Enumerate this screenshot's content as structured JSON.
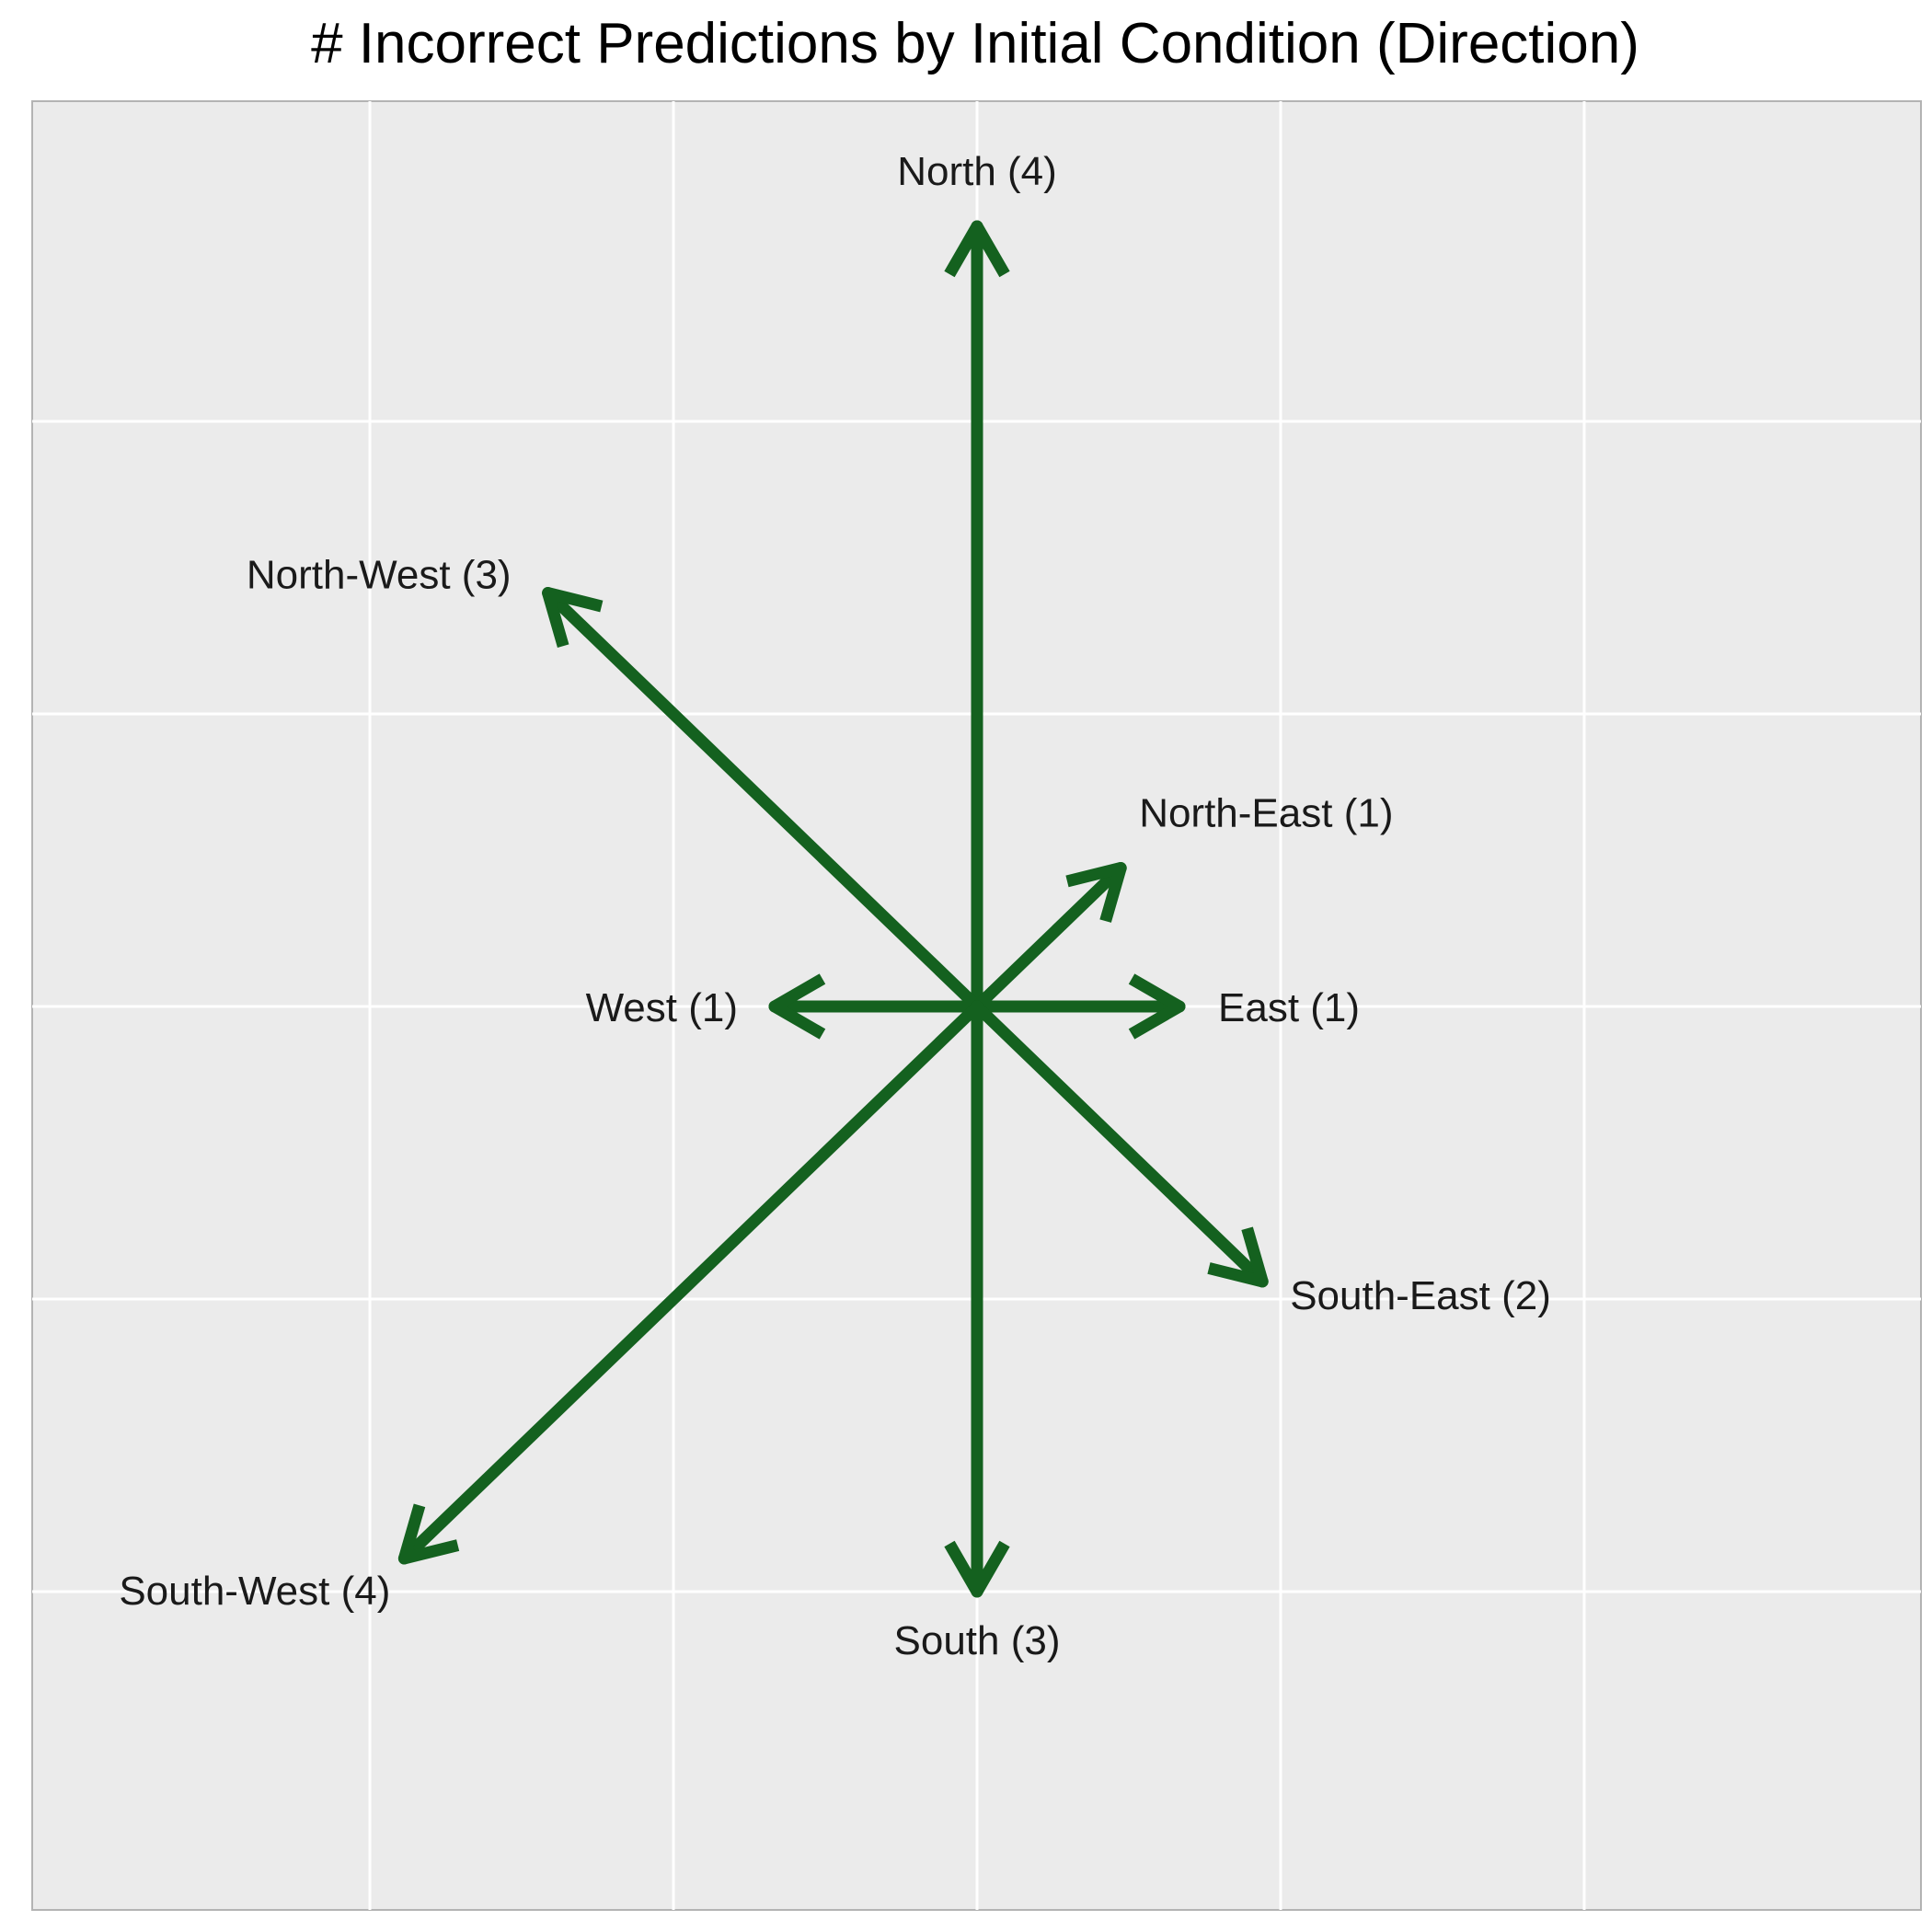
{
  "chart_data": {
    "type": "vector",
    "title": "# Incorrect Predictions by Initial Condition (Direction)",
    "xlim": [
      -4.4,
      4.4
    ],
    "ylim": [
      -4.4,
      4.4
    ],
    "grid": true,
    "arrows": [
      {
        "name": "North (4)",
        "direction": "North",
        "count": 4,
        "x": 0,
        "y": 4
      },
      {
        "name": "North-West (3)",
        "direction": "North-West",
        "count": 3,
        "x": -2.12,
        "y": 2.12
      },
      {
        "name": "North-East (1)",
        "direction": "North-East",
        "count": 1,
        "x": 0.71,
        "y": 0.71
      },
      {
        "name": "West (1)",
        "direction": "West",
        "count": 1,
        "x": -1,
        "y": 0
      },
      {
        "name": "East (1)",
        "direction": "East",
        "count": 1,
        "x": 1,
        "y": 0
      },
      {
        "name": "South-East (2)",
        "direction": "South-East",
        "count": 2,
        "x": 1.41,
        "y": -1.41
      },
      {
        "name": "South-West (4)",
        "direction": "South-West",
        "count": 4,
        "x": -2.83,
        "y": -2.83
      },
      {
        "name": "South (3)",
        "direction": "South",
        "count": 3,
        "x": 0,
        "y": -3
      }
    ]
  },
  "colors": {
    "panel": "#ebebeb",
    "grid": "#ffffff",
    "arrow": "#14611f",
    "panel_border": "#b3b3b3"
  }
}
